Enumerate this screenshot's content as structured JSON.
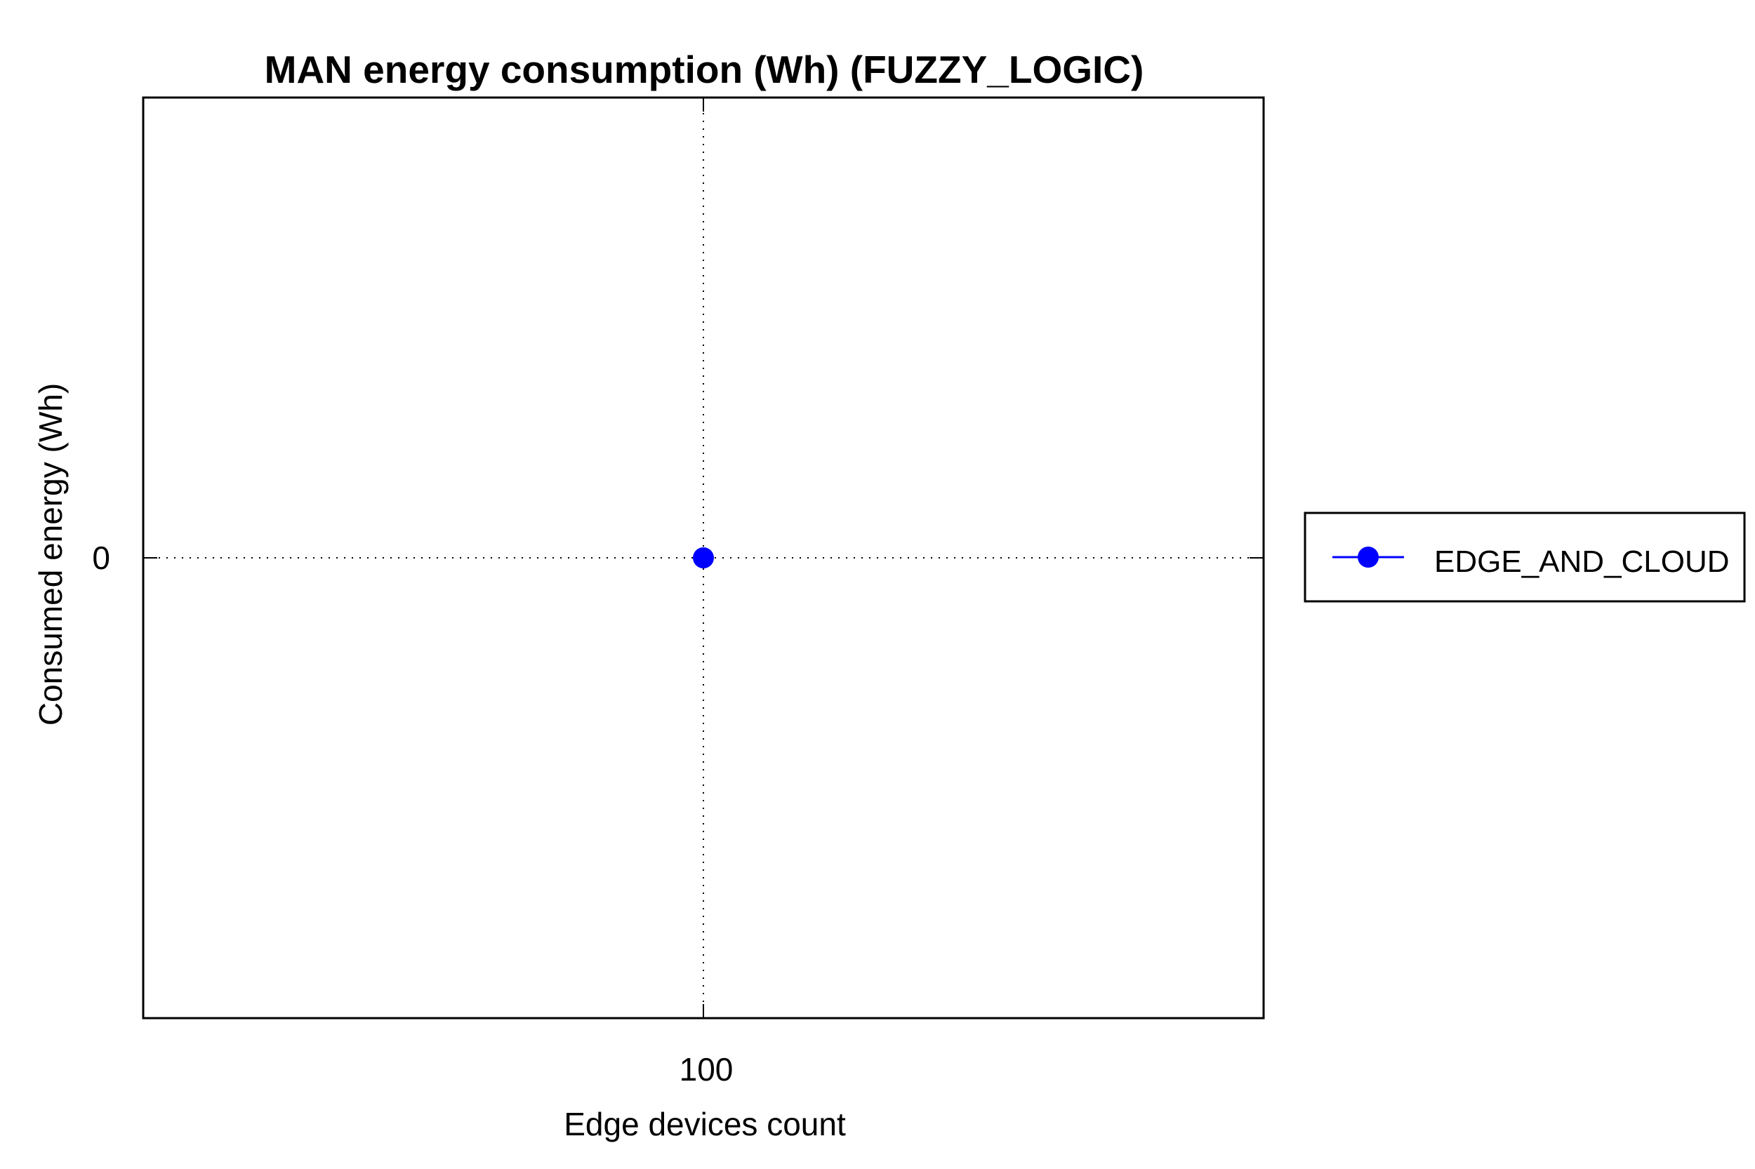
{
  "chart_data": {
    "type": "line",
    "title": "MAN energy consumption (Wh) (FUZZY_LOGIC)",
    "xlabel": "Edge devices count",
    "ylabel": "Consumed energy (Wh)",
    "x": [
      100
    ],
    "x_ticks": [
      "100"
    ],
    "y_ticks": [
      "0"
    ],
    "xlim": [
      99,
      101
    ],
    "ylim": [
      -1,
      1
    ],
    "grid": true,
    "legend_position": "right",
    "series": [
      {
        "name": "EDGE_AND_CLOUD",
        "values": [
          0
        ],
        "color": "#0000ff",
        "marker": "circle"
      }
    ]
  }
}
